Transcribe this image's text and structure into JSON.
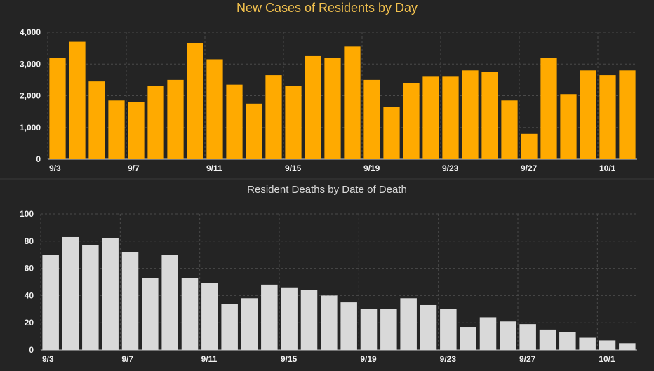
{
  "chart_data": [
    {
      "type": "bar",
      "title": "New Cases of Residents by Day",
      "xlabel": "",
      "ylabel": "",
      "categories": [
        "9/3",
        "9/4",
        "9/5",
        "9/6",
        "9/7",
        "9/8",
        "9/9",
        "9/10",
        "9/11",
        "9/12",
        "9/13",
        "9/14",
        "9/15",
        "9/16",
        "9/17",
        "9/18",
        "9/19",
        "9/20",
        "9/21",
        "9/22",
        "9/23",
        "9/24",
        "9/25",
        "9/26",
        "9/27",
        "9/28",
        "9/29",
        "9/30",
        "10/1",
        "10/2"
      ],
      "values": [
        3200,
        3700,
        2450,
        1850,
        1800,
        2300,
        2500,
        3650,
        3150,
        2350,
        1750,
        2650,
        2300,
        3250,
        3200,
        3550,
        2500,
        1650,
        2400,
        2600,
        2600,
        2800,
        2750,
        1850,
        800,
        3200,
        2050,
        2800,
        2650,
        2800
      ],
      "ylim": [
        0,
        4000
      ],
      "yticks": [
        0,
        1000,
        2000,
        3000,
        4000
      ],
      "ytick_labels": [
        "0",
        "1,000",
        "2,000",
        "3,000",
        "4,000"
      ],
      "xtick_labels": [
        "9/3",
        "9/7",
        "9/11",
        "9/15",
        "9/19",
        "9/23",
        "9/27",
        "10/1"
      ],
      "bar_color": "#FFAA00",
      "grid": true
    },
    {
      "type": "bar",
      "title": "Resident Deaths by Date of Death",
      "xlabel": "",
      "ylabel": "",
      "categories": [
        "9/3",
        "9/4",
        "9/5",
        "9/6",
        "9/7",
        "9/8",
        "9/9",
        "9/10",
        "9/11",
        "9/12",
        "9/13",
        "9/14",
        "9/15",
        "9/16",
        "9/17",
        "9/18",
        "9/19",
        "9/20",
        "9/21",
        "9/22",
        "9/23",
        "9/24",
        "9/25",
        "9/26",
        "9/27",
        "9/28",
        "9/29",
        "9/30",
        "10/1",
        "10/2"
      ],
      "values": [
        70,
        83,
        77,
        82,
        72,
        53,
        70,
        53,
        49,
        34,
        38,
        48,
        46,
        44,
        40,
        35,
        30,
        30,
        38,
        33,
        30,
        17,
        24,
        21,
        19,
        15,
        13,
        9,
        7,
        5
      ],
      "ylim": [
        0,
        100
      ],
      "yticks": [
        0,
        20,
        40,
        60,
        80,
        100
      ],
      "ytick_labels": [
        "0",
        "20",
        "40",
        "60",
        "80",
        "100"
      ],
      "xtick_labels": [
        "9/3",
        "9/7",
        "9/11",
        "9/15",
        "9/19",
        "9/23",
        "9/27",
        "10/1"
      ],
      "bar_color": "#D9D9D9",
      "grid": true
    }
  ],
  "theme": {
    "background": "#242424",
    "grid_color": "#4a4a4a",
    "axis_color": "#c8c8c8",
    "text_color": "#f1f1f1",
    "top_title_color": "#F2C14E",
    "bottom_title_color": "#D9D9D9"
  }
}
